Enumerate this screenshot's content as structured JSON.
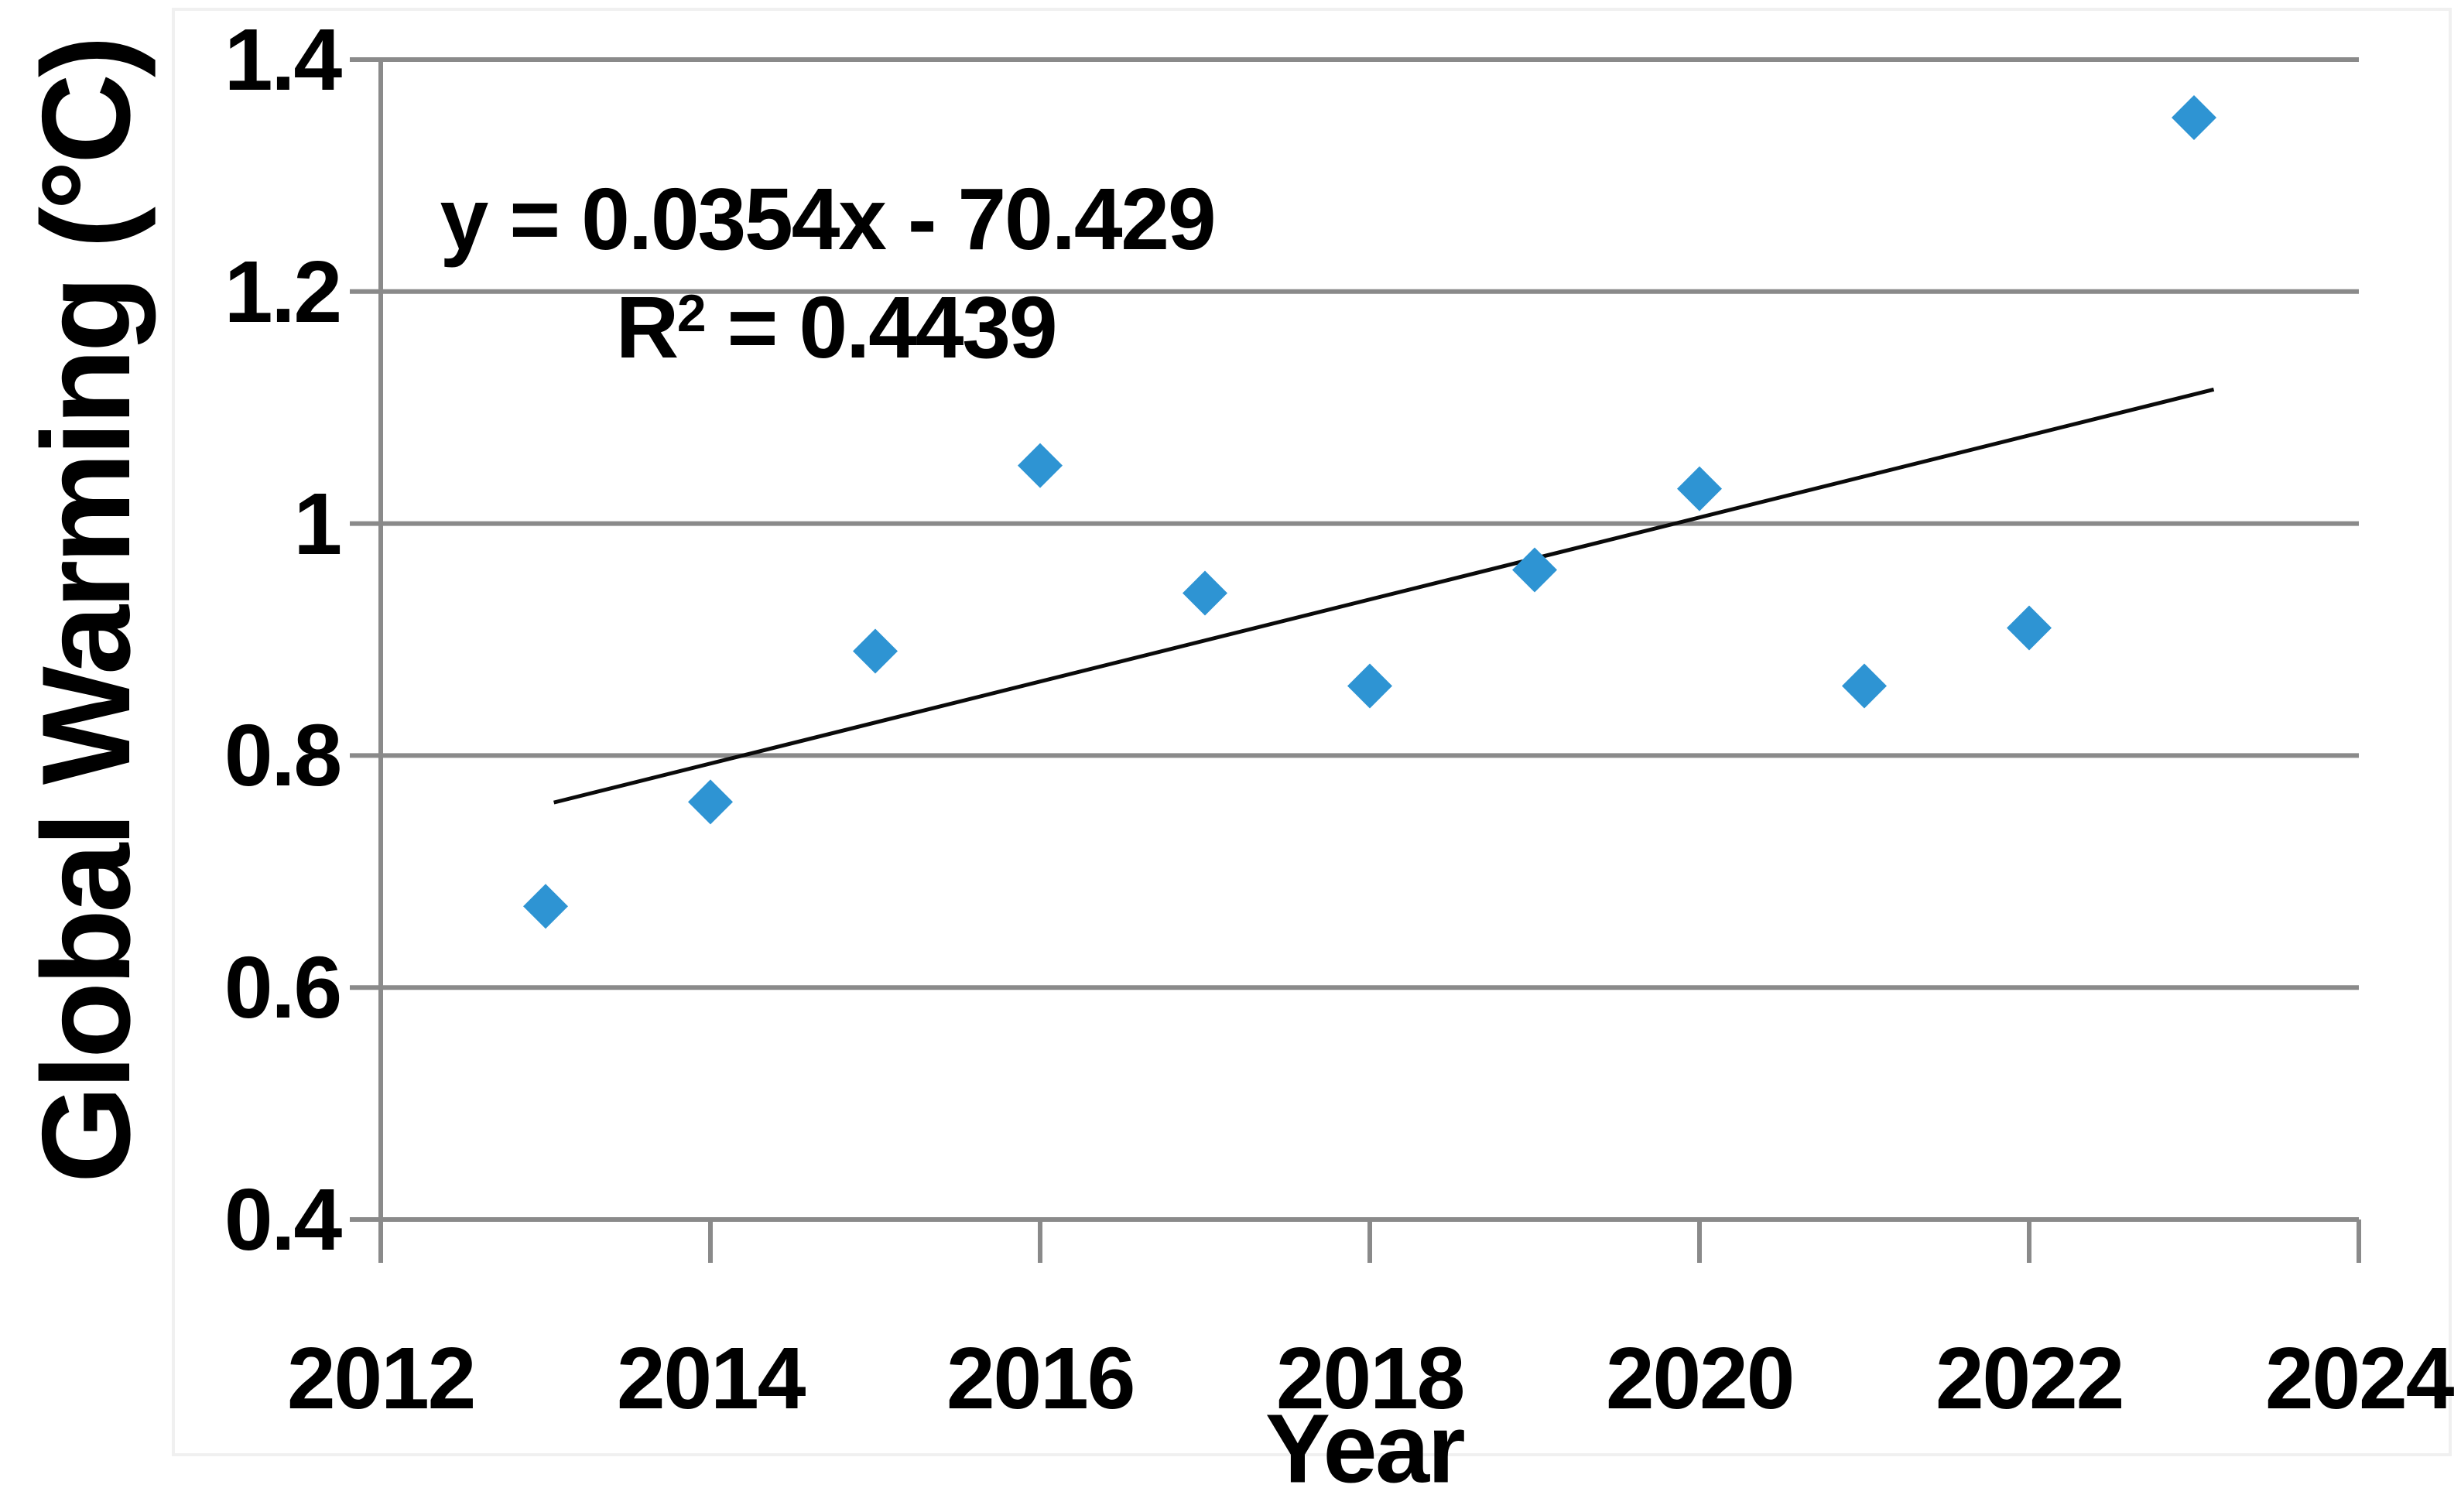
{
  "chart_data": {
    "type": "scatter",
    "title": "",
    "xlabel": "Year",
    "ylabel": "Global Warming (°C)",
    "x": [
      2013,
      2014,
      2015,
      2016,
      2017,
      2018,
      2019,
      2020,
      2021,
      2022,
      2023
    ],
    "y": [
      0.67,
      0.76,
      0.89,
      1.05,
      0.94,
      0.86,
      0.96,
      1.03,
      0.86,
      0.91,
      1.35
    ],
    "xlim": [
      2012,
      2024
    ],
    "ylim": [
      0.4,
      1.4
    ],
    "x_ticks": [
      {
        "label": "2012",
        "value": 2012
      },
      {
        "label": "2014",
        "value": 2014
      },
      {
        "label": "2016",
        "value": 2016
      },
      {
        "label": "2018",
        "value": 2018
      },
      {
        "label": "2020",
        "value": 2020
      },
      {
        "label": "2022",
        "value": 2022
      },
      {
        "label": "2024",
        "value": 2024
      }
    ],
    "y_ticks": [
      {
        "label": "1.4",
        "value": 1.4
      },
      {
        "label": "1.2",
        "value": 1.2
      },
      {
        "label": "1",
        "value": 1.0
      },
      {
        "label": "0.8",
        "value": 0.8
      },
      {
        "label": "0.6",
        "value": 0.6
      },
      {
        "label": "0.4",
        "value": 0.4
      }
    ],
    "grid": "horizontal-only",
    "legend": "none",
    "marker": {
      "shape": "diamond",
      "color": "#2E94D3",
      "half_diagonal": 29
    },
    "trendline": {
      "style": "linear",
      "color": "#0a0a0a",
      "x_start": 2013.05,
      "x_end": 2023.12,
      "slope": 0.0354,
      "intercept": -70.429
    },
    "annotation": {
      "equation": "y = 0.0354x - 70.429",
      "r2_base": "R",
      "r2_sup": "2",
      "r2_rest": " = 0.4439"
    },
    "colors": {
      "grid": "#8a8a8a",
      "axis": "#8a8a8a",
      "marker": "#2E94D3",
      "trendline": "#0a0a0a",
      "frame": "#f0f0f0",
      "text": "#000000",
      "background": "#ffffff"
    }
  }
}
